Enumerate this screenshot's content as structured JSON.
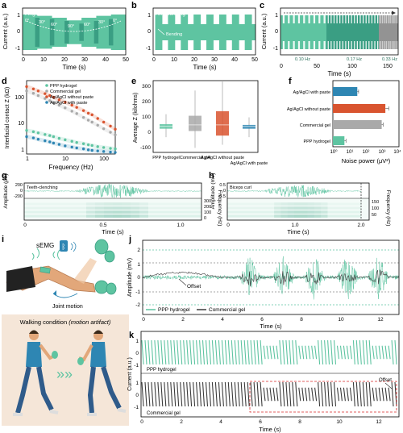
{
  "colors": {
    "teal": "#5ec4a1",
    "teal_dark": "#3a9e83",
    "teal_light": "#c6ebdc",
    "red": "#d9542f",
    "blue": "#2e86b3",
    "gray": "#a9a9a9",
    "dark": "#3b3b3b",
    "offset_red": "#d62728"
  },
  "panels": {
    "a": {
      "letter": "a",
      "caption": "Finger bending",
      "ylabel": "Current (a.u.)",
      "xlabel": "Time (s)",
      "xticks": [
        "0",
        "10",
        "20",
        "30",
        "40",
        "50"
      ],
      "yticks": [
        "1",
        "0",
        "-1"
      ],
      "angles": [
        "0°",
        "30°",
        "60°",
        "90°",
        "60°",
        "30°",
        "0°"
      ]
    },
    "b": {
      "letter": "b",
      "caption": "Arm bending",
      "ylabel": "",
      "xlabel": "Time (s)",
      "xticks": [
        "0",
        "10",
        "20",
        "30",
        "40",
        "50"
      ],
      "yticks": [
        "1",
        "0",
        "-1"
      ],
      "annotation": "Bending"
    },
    "c": {
      "letter": "c",
      "ylabel": "Current (a.u.)",
      "xlabel": "Time (s)",
      "xticks": [
        "0",
        "50",
        "100",
        "150"
      ],
      "yticks": [
        "1",
        "0",
        "-1"
      ],
      "freq_labels": [
        "0.10 Hz",
        "0.17 Hz",
        "0.33 Hz"
      ]
    },
    "d": {
      "letter": "d",
      "ylabel": "Interfacial contact Z (kΩ)",
      "xlabel": "Frequency (Hz)",
      "xticks": [
        "1",
        "10",
        "100"
      ],
      "yticks": [
        "100",
        "10",
        "1"
      ],
      "legend": [
        "PPP hydrogel",
        "Commercial gel",
        "Ag/AgCl without paste",
        "Ag/AgCl with paste"
      ]
    },
    "e": {
      "letter": "e",
      "ylabel": "Average Z (kilohms)",
      "yticks": [
        "300",
        "200",
        "100",
        "0",
        "-100"
      ],
      "categories": [
        "PPP hydrogel",
        "Commercial gel",
        "Ag/AgCl without paste",
        "Ag/AgCl with paste"
      ]
    },
    "f": {
      "letter": "f",
      "xlabel": "Noise power (μV²)",
      "xticks": [
        "10⁰",
        "10¹",
        "10²",
        "10³",
        "10⁴"
      ],
      "categories": [
        "Ag/AgCl with paste",
        "Ag/AgCl without paste",
        "Commercial gel",
        "PPP hydrogel"
      ]
    },
    "g": {
      "letter": "g",
      "caption": "Teeth-clenching",
      "ylabel": "Amplitude (μV)",
      "ylabel_right": "Frequency (Hz)",
      "xlabel": "Time (s)",
      "xticks": [
        "0",
        "0.5",
        "1.0"
      ],
      "yticks": [
        "200",
        "0",
        "-200"
      ],
      "yticks_right": [
        "300",
        "200",
        "100",
        "0"
      ]
    },
    "h": {
      "letter": "h",
      "caption": "Biceps curl",
      "ylabel": "Amplitude (mV)",
      "ylabel_right": "Frequency (Hz)",
      "xlabel": "Time (s)",
      "xticks": [
        "0",
        "1.0",
        "2.0"
      ],
      "yticks": [
        "0.5",
        "0",
        "-0.5"
      ],
      "yticks_right": [
        "150",
        "100",
        "50"
      ]
    },
    "i": {
      "letter": "i",
      "semg": "sEMG",
      "joint": "Joint motion",
      "walking_title": "Walking condition",
      "walking_sub": "(motion artifact)",
      "chevrons": "»»"
    },
    "j": {
      "letter": "j",
      "ylabel": "Amplitude (mV)",
      "xlabel": "Time (s)",
      "xticks": [
        "0",
        "2",
        "4",
        "6",
        "8",
        "10",
        "12"
      ],
      "yticks": [
        "2",
        "1",
        "0",
        "-1",
        "-2"
      ],
      "offset": "Offset",
      "legend": [
        "PPP hydrogel",
        "Commercial gel"
      ]
    },
    "k": {
      "letter": "k",
      "ylabel": "Current (a.u.)",
      "xlabel": "Time (s)",
      "xticks": [
        "0",
        "2",
        "4",
        "6",
        "8",
        "10",
        "12"
      ],
      "yticks_top": [
        "1",
        "0",
        "-1"
      ],
      "yticks_bottom": [
        "1",
        "0",
        "-1"
      ],
      "label_top": "PPP hydrogel",
      "label_bottom": "Commercial gel",
      "offset": "Offset"
    }
  },
  "chart_data": [
    {
      "panel": "d",
      "type": "scatter",
      "xscale": "log",
      "yscale": "log",
      "xlim": [
        1,
        200
      ],
      "ylim": [
        1,
        200
      ],
      "x": [
        1,
        1.5,
        2,
        3,
        4,
        5,
        7,
        10,
        15,
        20,
        30,
        40,
        50,
        70,
        100,
        150,
        200
      ],
      "series": [
        {
          "name": "Ag/AgCl without paste",
          "values": [
            130,
            110,
            95,
            78,
            68,
            60,
            50,
            42,
            34,
            29,
            23,
            19,
            17,
            13,
            10,
            7.5,
            6
          ]
        },
        {
          "name": "Commercial gel",
          "values": [
            95,
            80,
            68,
            55,
            47,
            41,
            34,
            28,
            22,
            18.5,
            14,
            11.5,
            10,
            8,
            6.2,
            4.8,
            4
          ]
        },
        {
          "name": "PPP hydrogel",
          "values": [
            5.5,
            5,
            4.6,
            4.1,
            3.8,
            3.5,
            3.1,
            2.8,
            2.5,
            2.3,
            2.1,
            1.95,
            1.85,
            1.7,
            1.6,
            1.5,
            1.45
          ]
        },
        {
          "name": "Ag/AgCl with paste",
          "values": [
            3.5,
            3.2,
            2.9,
            2.6,
            2.4,
            2.2,
            2,
            1.8,
            1.65,
            1.55,
            1.45,
            1.35,
            1.3,
            1.25,
            1.2,
            1.15,
            1.12
          ]
        }
      ]
    },
    {
      "panel": "e",
      "type": "bar",
      "ylim": [
        -150,
        320
      ],
      "categories": [
        "PPP hydrogel",
        "Commercial gel",
        "Ag/AgCl without paste",
        "Ag/AgCl with paste"
      ],
      "boxes": [
        {
          "min": -50,
          "q1": 5,
          "median": 20,
          "q3": 35,
          "max": 100
        },
        {
          "min": -120,
          "q1": -10,
          "median": 30,
          "q3": 90,
          "max": 255
        },
        {
          "min": -100,
          "q1": -40,
          "median": 30,
          "q3": 120,
          "max": 320
        },
        {
          "min": -50,
          "q1": 5,
          "median": 20,
          "q3": 30,
          "max": 80
        }
      ]
    },
    {
      "panel": "f",
      "type": "bar",
      "xscale": "log",
      "xlim": [
        1,
        10000
      ],
      "categories": [
        "Ag/AgCl with paste",
        "Ag/AgCl without paste",
        "Commercial gel",
        "PPP hydrogel"
      ],
      "values": [
        30,
        1500,
        900,
        5
      ],
      "errors": [
        6,
        900,
        200,
        1.2
      ]
    },
    {
      "panel": "j",
      "type": "line",
      "xlim": [
        0,
        13
      ],
      "ylim": [
        -2.5,
        2.5
      ],
      "series": [
        {
          "name": "PPP hydrogel"
        },
        {
          "name": "Commercial gel"
        }
      ]
    }
  ]
}
